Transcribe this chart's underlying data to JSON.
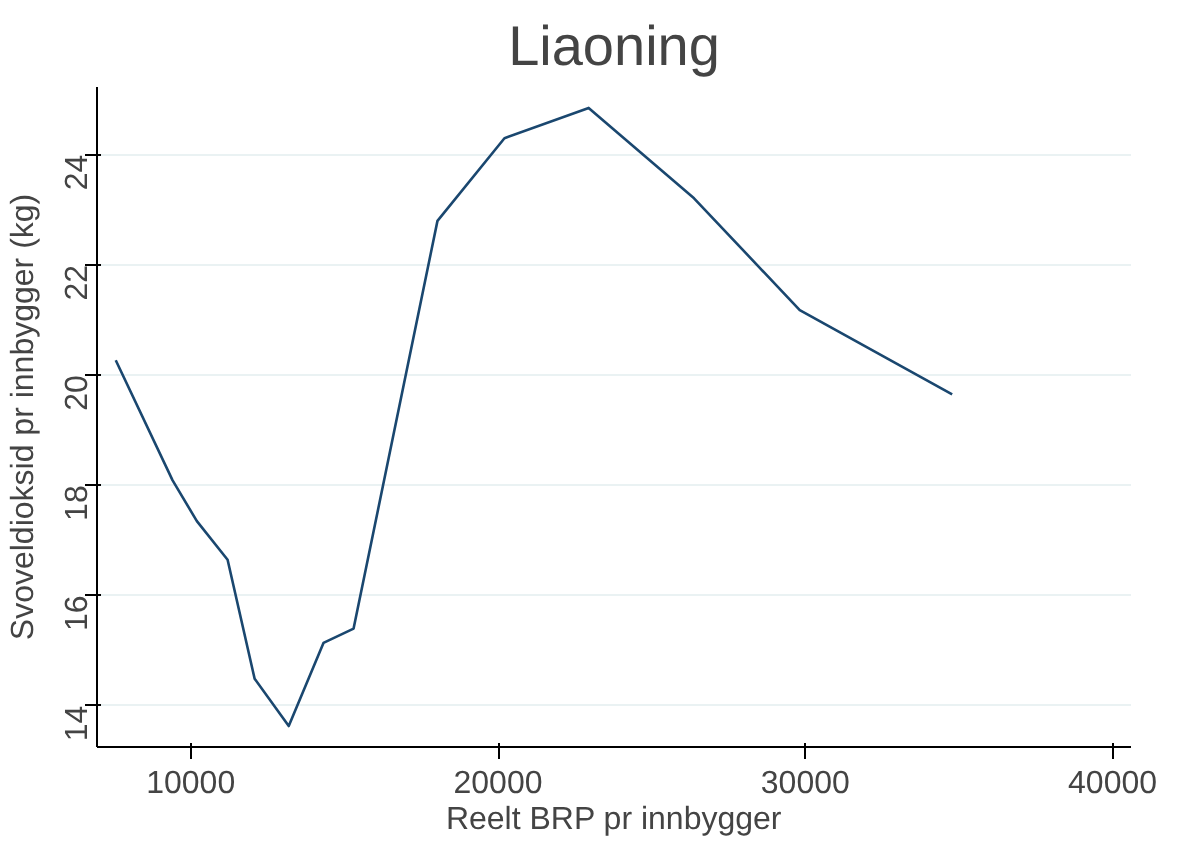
{
  "chart_data": {
    "type": "line",
    "title": "Liaoning",
    "xlabel": "Reelt BRP pr innbygger",
    "ylabel": "Svoveldioksid pr innbygger (kg)",
    "x": [
      7560,
      9410,
      10200,
      11200,
      12080,
      13190,
      14320,
      15300,
      18030,
      20210,
      22950,
      26380,
      29820,
      34780
    ],
    "series": [
      {
        "color": "#1a476f",
        "values": [
          20.27,
          18.09,
          17.35,
          16.65,
          14.49,
          13.63,
          15.14,
          15.4,
          22.8,
          24.3,
          24.85,
          23.21,
          21.18,
          19.65
        ]
      }
    ],
    "xlim": [
      6950,
      40600
    ],
    "ylim": [
      13.25,
      25.23
    ],
    "xticks": [
      10000,
      20000,
      30000,
      40000
    ],
    "yticks": [
      14,
      16,
      18,
      20,
      22,
      24
    ],
    "grid": "y"
  }
}
